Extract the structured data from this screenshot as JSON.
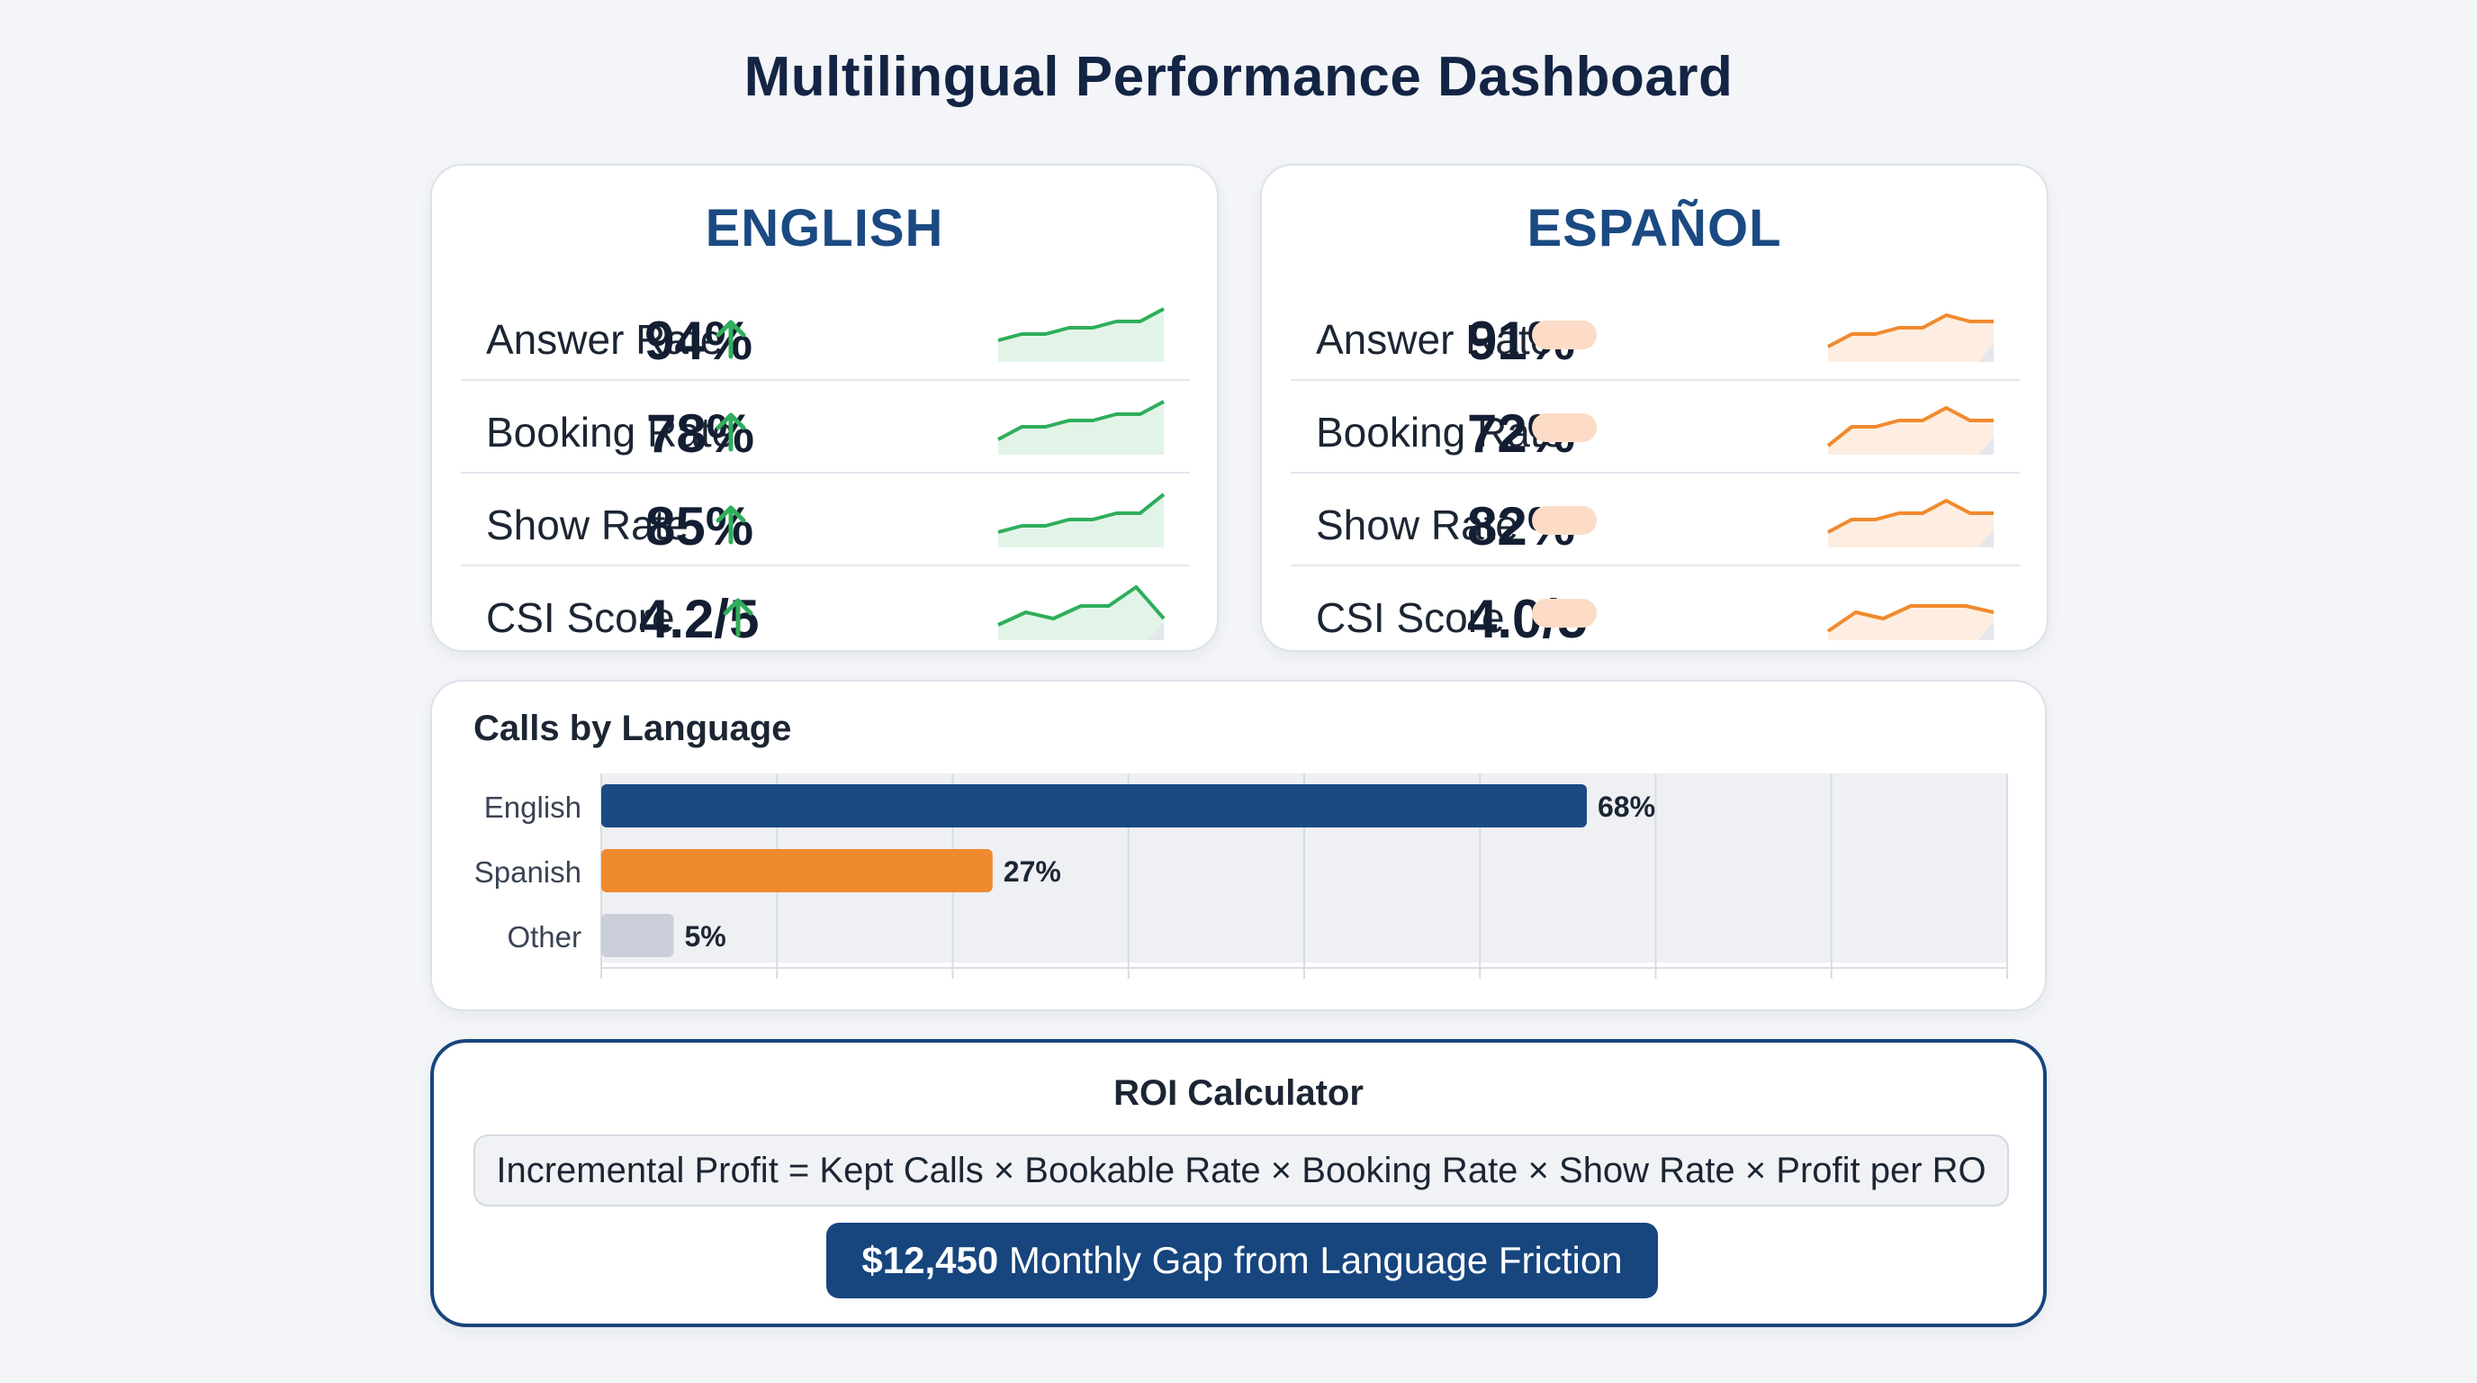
{
  "page": {
    "title": "Multilingual Performance Dashboard"
  },
  "colors": {
    "navy": "#1b4a82",
    "orange": "#f08a2e",
    "green": "#2fae5b",
    "gray_bar": "#c9ced8",
    "pill": "#fcdcc6"
  },
  "english": {
    "title": "ENGLISH",
    "trend_icon": "arrow-up-icon",
    "metrics": [
      {
        "label": "Answer Rate",
        "value": "94%",
        "spark": [
          3,
          4,
          4,
          5,
          5,
          6,
          6,
          8
        ]
      },
      {
        "label": "Booking Rate",
        "value": "78%",
        "spark": [
          2,
          4,
          4,
          5,
          5,
          6,
          6,
          8
        ]
      },
      {
        "label": "Show Rate",
        "value": "85%",
        "spark": [
          2,
          3,
          3,
          4,
          4,
          5,
          5,
          8
        ]
      },
      {
        "label": "CSI Score",
        "value": "4.2/5",
        "spark": [
          2,
          4,
          3,
          5,
          5,
          8,
          3
        ]
      }
    ]
  },
  "espanol": {
    "title": "ESPAÑOL",
    "trend_icon": "neutral-pill-icon",
    "metrics": [
      {
        "label": "Answer Rate",
        "value": "91%",
        "spark": [
          2,
          4,
          4,
          5,
          5,
          7,
          6,
          6
        ]
      },
      {
        "label": "Booking Rate",
        "value": "72%",
        "spark": [
          1,
          4,
          4,
          5,
          5,
          7,
          5,
          5
        ]
      },
      {
        "label": "Show Rate",
        "value": "82%",
        "spark": [
          2,
          4,
          4,
          5,
          5,
          7,
          5,
          5
        ]
      },
      {
        "label": "CSI Score",
        "value": "4.0/5",
        "spark": [
          1,
          4,
          3,
          5,
          5,
          5,
          4
        ]
      }
    ]
  },
  "calls_by_language": {
    "title": "Calls by Language",
    "chart_data": {
      "type": "bar",
      "orientation": "horizontal",
      "title": "Calls by Language",
      "categories": [
        "English",
        "Spanish",
        "Other"
      ],
      "values": [
        68,
        27,
        5
      ],
      "value_labels": [
        "68%",
        "27%",
        "5%"
      ],
      "xlim": [
        0,
        97
      ],
      "grid": true
    }
  },
  "roi": {
    "title": "ROI Calculator",
    "formula": "Incremental Profit = Kept Calls × Bookable Rate × Booking Rate × Show Rate × Profit per RO",
    "gap_amount": "$12,450",
    "gap_text": "Monthly Gap from Language Friction"
  }
}
